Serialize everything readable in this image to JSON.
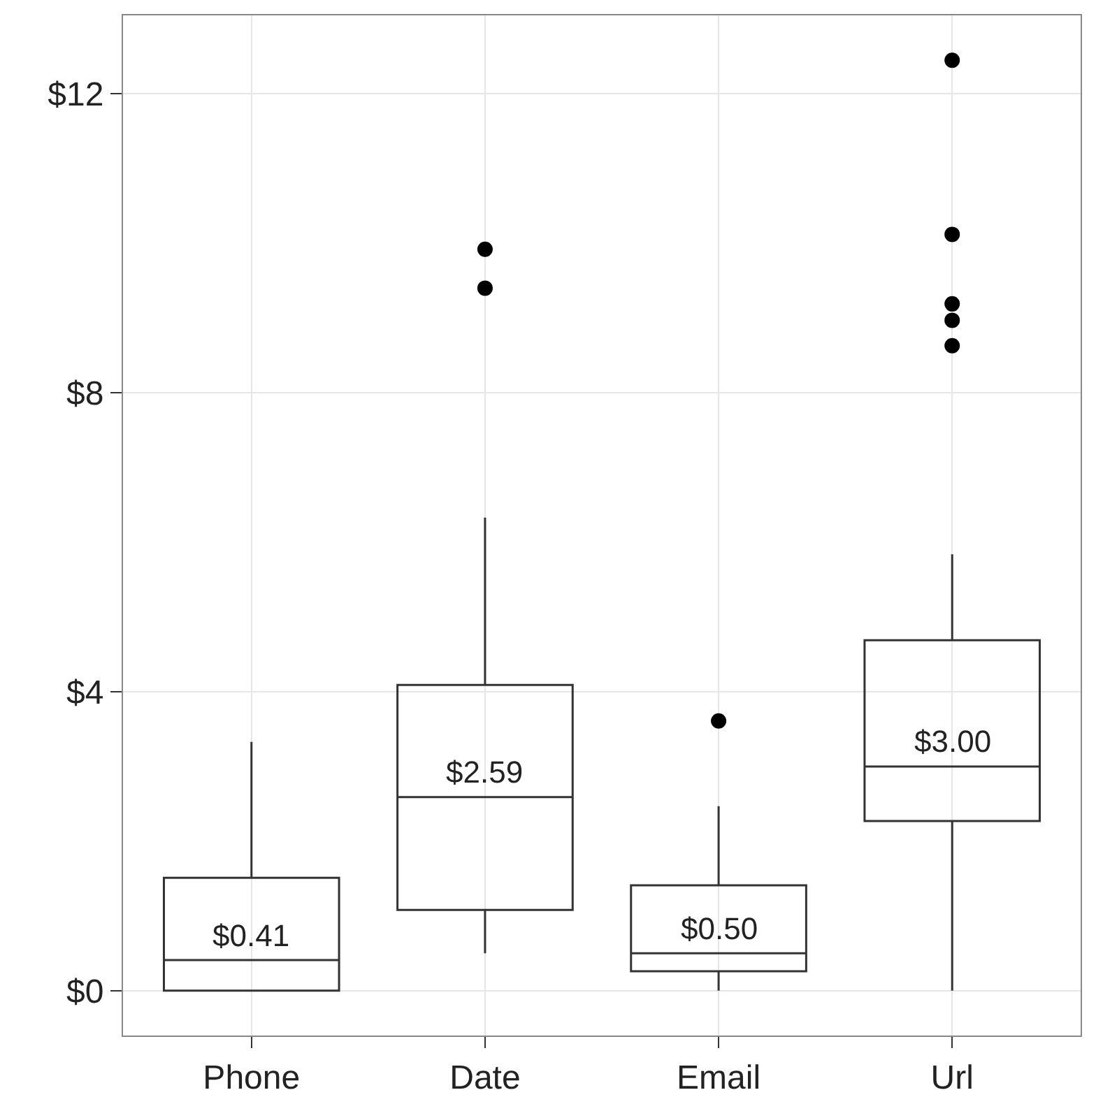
{
  "chart_data": {
    "type": "box",
    "categories": [
      "Phone",
      "Date",
      "Email",
      "Url"
    ],
    "boxes": [
      {
        "low": 0,
        "q1": 0,
        "median": 0.41,
        "q3": 1.51,
        "high": 3.33
      },
      {
        "low": 0.5,
        "q1": 1.08,
        "median": 2.59,
        "q3": 4.09,
        "high": 6.33,
        "outliers": [
          9.92,
          9.4
        ]
      },
      {
        "low": 0,
        "q1": 0.26,
        "median": 0.5,
        "q3": 1.41,
        "high": 2.47,
        "outliers": [
          3.61
        ]
      },
      {
        "low": 0,
        "q1": 2.27,
        "median": 3.0,
        "q3": 4.69,
        "high": 5.84,
        "outliers": [
          12.45,
          10.12,
          9.19,
          8.97,
          8.63
        ]
      }
    ],
    "color": "#333333",
    "ylim": [
      -0.6,
      13.05
    ],
    "yticks": [
      {
        "value": 0,
        "label": "$0"
      },
      {
        "value": 4,
        "label": "$4"
      },
      {
        "value": 8,
        "label": "$8"
      },
      {
        "value": 12,
        "label": "$12"
      }
    ],
    "grid": true,
    "annotations": [
      {
        "text": "$0.41",
        "x": "Phone",
        "y": 0.41
      },
      {
        "text": "$2.59",
        "x": "Date",
        "y": 2.59
      },
      {
        "text": "$0.50",
        "x": "Email",
        "y": 0.5
      },
      {
        "text": "$3.00",
        "x": "Url",
        "y": 3.0
      }
    ]
  }
}
